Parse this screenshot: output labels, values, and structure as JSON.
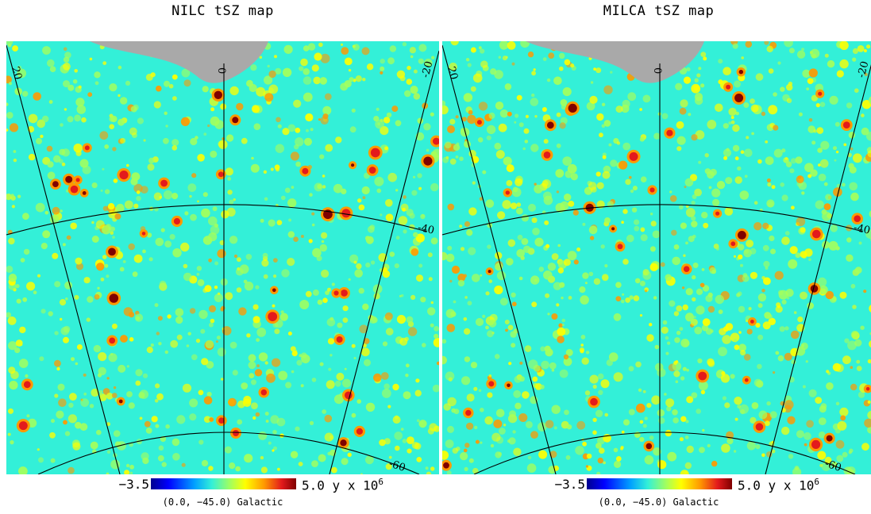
{
  "panels": [
    {
      "title": "NILC tSZ map",
      "colorbar_min": "−3.5",
      "colorbar_max_value": "5.0",
      "colorbar_unit_prefix": "y x 10",
      "colorbar_unit_exponent": "6",
      "projection_label": "(0.0, −45.0) Galactic",
      "grid_labels": {
        "lon_left": "20",
        "lon_center": "0",
        "lon_right": "-20",
        "lat_mid": "-40",
        "lat_low": "-60"
      }
    },
    {
      "title": "MILCA tSZ map",
      "colorbar_min": "−3.5",
      "colorbar_max_value": "5.0",
      "colorbar_unit_prefix": "y x 10",
      "colorbar_unit_exponent": "6",
      "projection_label": "(0.0, −45.0) Galactic",
      "grid_labels": {
        "lon_left": "20",
        "lon_center": "0",
        "lon_right": "-20",
        "lat_mid": "-40",
        "lat_low": "-60"
      }
    }
  ],
  "colors": {
    "background_field": "#33f0d8",
    "masked_region": "#a9a9a9",
    "graticule": "#000000",
    "colormap": [
      "#00008f",
      "#0000ff",
      "#00a0ff",
      "#33f0d8",
      "#a6ff5a",
      "#ffff00",
      "#ff9900",
      "#e31a1c",
      "#7f0000"
    ]
  }
}
